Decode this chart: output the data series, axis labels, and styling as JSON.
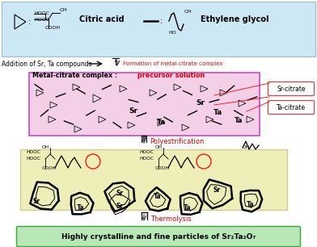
{
  "bg": "#ffffff",
  "blue_box_fc": "#cce8f4",
  "pink_box_fc": "#f4d0e8",
  "yellow_box_fc": "#eeeeb8",
  "green_box_fc": "#b8e8b8",
  "pink_border": "#cc44cc",
  "green_border": "#44aa44",
  "yellow_border": "#cccc88",
  "blue_border": "#99bbcc",
  "red": "#dd0000",
  "citric_acid": "Citric acid",
  "ethylene_glycol": "Ethylene glycol",
  "addition": "Addition of Sr, Ta compounds",
  "formation": "Formation of metal-citrate complex",
  "precursor_black": "Metal-citrate complex : ",
  "precursor_red": "precursor solution",
  "sr_citrate": "Sr-citrate",
  "ta_citrate": "Ta-citrate",
  "polyest": "Polyestrification",
  "thermolysis": "Thermolysis",
  "final": "Highly crystalline and fine particles of Sr₂Ta₂O₇"
}
